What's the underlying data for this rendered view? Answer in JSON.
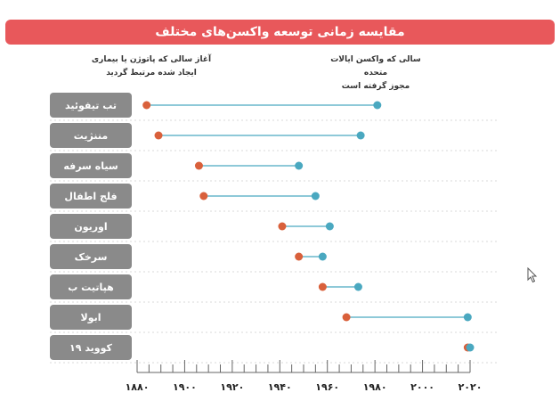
{
  "chart_data": {
    "type": "dumbbell",
    "title": "مقایسه زمانی توسعه واکسن‌های مختلف",
    "legend": {
      "start_label_line1": "آغاز سالی که پاتوژن یا بیماری",
      "start_label_line2": "ایجاد شده مرتبط گردید",
      "end_label_line1": "سالی که واکسن ایالات متحده",
      "end_label_line2": "مجوز گرفته است"
    },
    "colors": {
      "start": "#d9603b",
      "end": "#4aa8c0",
      "connector": "#8ec9d8",
      "label_bg": "#8a8a8a",
      "title_bg": "#e8585b"
    },
    "xlim": [
      1880,
      2020
    ],
    "x_ticks": [
      "۱۸۸۰",
      "۱۹۰۰",
      "۱۹۲۰",
      "۱۹۴۰",
      "۱۹۶۰",
      "۱۹۸۰",
      "۲۰۰۰",
      "۲۰۲۰"
    ],
    "x_tick_values": [
      1880,
      1900,
      1920,
      1940,
      1960,
      1980,
      2000,
      2020
    ],
    "series": [
      {
        "category": "تب تیفوئید",
        "start": 1884,
        "end": 1981
      },
      {
        "category": "مننژیت",
        "start": 1889,
        "end": 1974
      },
      {
        "category": "سیاه سرفه",
        "start": 1906,
        "end": 1948
      },
      {
        "category": "فلج اطفال",
        "start": 1908,
        "end": 1955
      },
      {
        "category": "اوریون",
        "start": 1941,
        "end": 1961
      },
      {
        "category": "سرخک",
        "start": 1948,
        "end": 1958
      },
      {
        "category": "هپاتیت ب",
        "start": 1958,
        "end": 1973
      },
      {
        "category": "ابولا",
        "start": 1968,
        "end": 2019
      },
      {
        "category": "کووید ۱۹",
        "start": 2019,
        "end": 2020
      }
    ]
  }
}
